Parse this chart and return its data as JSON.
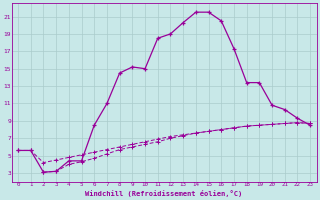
{
  "bg_color": "#c8e8e8",
  "line_color": "#990099",
  "grid_color": "#aacccc",
  "xlabel": "Windchill (Refroidissement éolien,°C)",
  "xlim": [
    -0.5,
    23.5
  ],
  "ylim": [
    2,
    22.5
  ],
  "xticks": [
    0,
    1,
    2,
    3,
    4,
    5,
    6,
    7,
    8,
    9,
    10,
    11,
    12,
    13,
    14,
    15,
    16,
    17,
    18,
    19,
    20,
    21,
    22,
    23
  ],
  "yticks": [
    3,
    5,
    7,
    9,
    11,
    13,
    15,
    17,
    19,
    21
  ],
  "curve1_x": [
    0,
    1,
    2,
    3,
    4,
    5,
    6,
    7,
    8,
    9,
    10,
    11,
    12,
    13,
    14,
    15,
    16,
    17,
    18,
    19,
    20,
    21,
    22,
    23
  ],
  "curve1_y": [
    5.6,
    5.6,
    3.1,
    3.2,
    4.4,
    4.4,
    8.5,
    11.0,
    14.5,
    15.2,
    15.0,
    18.5,
    19.0,
    20.3,
    21.5,
    21.5,
    20.5,
    17.3,
    13.4,
    13.4,
    10.8,
    10.3,
    9.3,
    8.5
  ],
  "curve2_x": [
    2,
    3,
    4,
    5,
    6,
    7,
    8,
    9,
    10,
    11,
    12,
    13,
    14,
    15,
    16,
    17,
    18,
    19,
    20,
    21,
    22,
    23
  ],
  "curve2_y": [
    3.1,
    3.2,
    4.0,
    4.3,
    4.7,
    5.2,
    5.7,
    6.0,
    6.3,
    6.6,
    7.0,
    7.3,
    7.6,
    7.8,
    8.0,
    8.2,
    8.4,
    8.5,
    8.6,
    8.7,
    8.8,
    8.7
  ],
  "curve3_x": [
    0,
    1,
    2,
    3,
    4,
    5,
    6,
    7,
    8,
    9,
    10,
    11,
    12,
    13,
    14,
    15,
    16,
    17,
    18,
    19,
    20,
    21,
    22,
    23
  ],
  "curve3_y": [
    5.6,
    5.6,
    4.2,
    4.5,
    4.8,
    5.1,
    5.4,
    5.7,
    6.0,
    6.3,
    6.6,
    6.9,
    7.2,
    7.4,
    7.6,
    7.8,
    8.0,
    8.2,
    8.4,
    8.5,
    8.6,
    8.7,
    8.8,
    8.7
  ]
}
